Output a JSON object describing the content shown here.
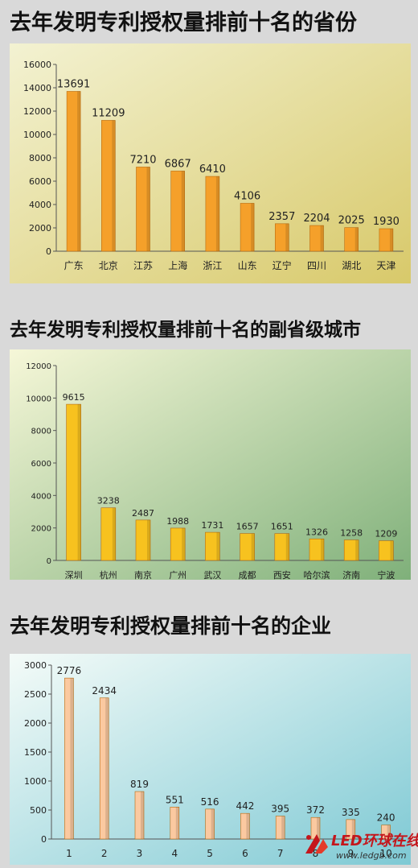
{
  "chart_data": [
    {
      "type": "bar",
      "title": "去年发明专利授权量排前十名的省份",
      "categories": [
        "广东",
        "北京",
        "江苏",
        "上海",
        "浙江",
        "山东",
        "辽宁",
        "四川",
        "湖北",
        "天津"
      ],
      "values": [
        13691,
        11209,
        7210,
        6867,
        6410,
        4106,
        2357,
        2204,
        2025,
        1930
      ],
      "value_labels": [
        "13691",
        "11209",
        "7210",
        "6867",
        "6410",
        "4106",
        "2357",
        "2204",
        "2025",
        "1930"
      ],
      "yticks": [
        "0",
        "2000",
        "4000",
        "6000",
        "8000",
        "10000",
        "12000",
        "14000",
        "16000"
      ],
      "ylim": [
        0,
        16000
      ],
      "bar_color": "#f5a02a",
      "grid": false,
      "xlabel": "",
      "ylabel": ""
    },
    {
      "type": "bar",
      "title": "去年发明专利授权量排前十名的副省级城市",
      "categories": [
        "深圳",
        "杭州",
        "南京",
        "广州",
        "武汉",
        "成都",
        "西安",
        "哈尔滨",
        "济南",
        "宁波"
      ],
      "values": [
        9615,
        3238,
        2487,
        1988,
        1731,
        1657,
        1651,
        1326,
        1258,
        1209
      ],
      "value_labels": [
        "9615",
        "3238",
        "2487",
        "1988",
        "1731",
        "1657",
        "1651",
        "1326",
        "1258",
        "1209"
      ],
      "yticks": [
        "0",
        "2000",
        "4000",
        "6000",
        "8000",
        "10000",
        "12000"
      ],
      "ylim": [
        0,
        12000
      ],
      "bar_color": "#f7c21f",
      "grid": false,
      "xlabel": "",
      "ylabel": ""
    },
    {
      "type": "bar",
      "title": "去年发明专利授权量排前十名的企业",
      "categories": [
        "1",
        "2",
        "3",
        "4",
        "5",
        "6",
        "7",
        "8",
        "9",
        "10"
      ],
      "values": [
        2776,
        2434,
        819,
        551,
        516,
        442,
        395,
        372,
        335,
        240
      ],
      "value_labels": [
        "2776",
        "2434",
        "819",
        "551",
        "516",
        "442",
        "395",
        "372",
        "335",
        "240"
      ],
      "yticks": [
        "0",
        "500",
        "1000",
        "1500",
        "2000",
        "2500",
        "3000"
      ],
      "ylim": [
        0,
        3000
      ],
      "bar_color": "#fbc9a0",
      "grid": false,
      "xlabel": "",
      "ylabel": ""
    }
  ],
  "logo": {
    "text": "LED环球在线",
    "url": "www.ledgb.com"
  },
  "colors": {
    "panel1_gradient": [
      "#f3f2d2",
      "#d8c96a"
    ],
    "panel2_gradient": [
      "#f6f7d8",
      "#7fb07a"
    ],
    "panel3_gradient": [
      "#f4fbf8",
      "#7ec9d4"
    ]
  }
}
